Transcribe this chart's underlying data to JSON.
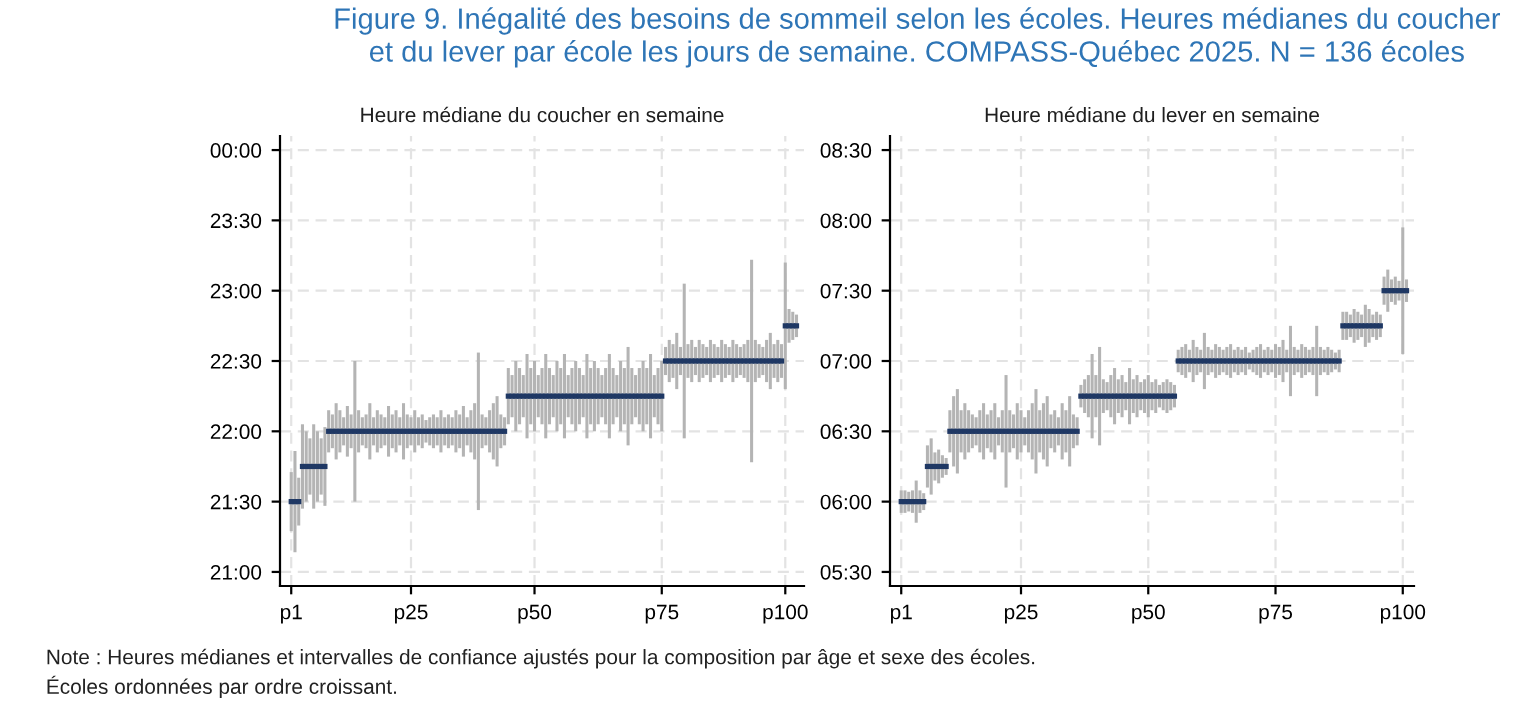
{
  "chart_data": [
    {
      "type": "scatter",
      "title": "Heure médiane du coucher en semaine",
      "annotations": [
        "Figure 9. Inégalité des besoins de sommeil selon les écoles. Heures médianes du coucher\net du lever par école les jours de semaine. COMPASS-Québec 2025. N = 136 écoles",
        "Note : Heures médianes et intervalles de confiance ajustés pour la composition par âge et sexe des écoles.\nÉcoles ordonnées par ordre croissant."
      ],
      "categories": [
        "p1",
        null,
        null,
        null,
        null,
        null,
        null,
        null,
        null,
        null,
        null,
        null,
        null,
        null,
        null,
        null,
        null,
        null,
        null,
        null,
        null,
        null,
        null,
        null,
        null,
        null,
        null,
        null,
        null,
        null,
        null,
        null,
        "p25",
        null,
        null,
        null,
        null,
        null,
        null,
        null,
        null,
        null,
        null,
        null,
        null,
        null,
        null,
        null,
        null,
        null,
        null,
        null,
        null,
        null,
        null,
        null,
        null,
        null,
        null,
        null,
        null,
        null,
        null,
        null,
        null,
        "p50",
        null,
        null,
        null,
        null,
        null,
        null,
        null,
        null,
        null,
        null,
        null,
        null,
        null,
        null,
        null,
        null,
        null,
        null,
        null,
        null,
        null,
        null,
        null,
        null,
        null,
        null,
        null,
        null,
        null,
        null,
        null,
        null,
        null,
        "p75",
        null,
        null,
        null,
        null,
        null,
        null,
        null,
        null,
        null,
        null,
        null,
        null,
        null,
        null,
        null,
        null,
        null,
        null,
        null,
        null,
        null,
        null,
        null,
        null,
        null,
        null,
        null,
        null,
        null,
        null,
        null,
        null,
        "p100",
        null,
        null,
        null
      ],
      "ylim": [
        20.9,
        24.1
      ],
      "yticks": [
        {
          "value": 21,
          "label": "21:00"
        },
        {
          "value": 21.5,
          "label": "21:30"
        },
        {
          "value": 22,
          "label": "22:00"
        },
        {
          "value": 22.5,
          "label": "22:30"
        },
        {
          "value": 23,
          "label": "23:00"
        },
        {
          "value": 23.5,
          "label": "23:30"
        },
        {
          "value": 24,
          "label": "00:00"
        }
      ],
      "grid": true,
      "series": [
        {
          "color": "#1f3864",
          "values": [
            21.5,
            21.5,
            21.5,
            21.75,
            21.75,
            21.75,
            21.75,
            21.75,
            21.75,
            21.75,
            22,
            22,
            22,
            22,
            22,
            22,
            22,
            22,
            22,
            22,
            22,
            22,
            22,
            22,
            22,
            22,
            22,
            22,
            22,
            22,
            22,
            22,
            22,
            22,
            22,
            22,
            22,
            22,
            22,
            22,
            22,
            22,
            22,
            22,
            22,
            22,
            22,
            22,
            22,
            22,
            22,
            22,
            22,
            22,
            22,
            22,
            22,
            22,
            22.25,
            22.25,
            22.25,
            22.25,
            22.25,
            22.25,
            22.25,
            22.25,
            22.25,
            22.25,
            22.25,
            22.25,
            22.25,
            22.25,
            22.25,
            22.25,
            22.25,
            22.25,
            22.25,
            22.25,
            22.25,
            22.25,
            22.25,
            22.25,
            22.25,
            22.25,
            22.25,
            22.25,
            22.25,
            22.25,
            22.25,
            22.25,
            22.25,
            22.25,
            22.25,
            22.25,
            22.25,
            22.25,
            22.25,
            22.25,
            22.25,
            22.25,
            22.5,
            22.5,
            22.5,
            22.5,
            22.5,
            22.5,
            22.5,
            22.5,
            22.5,
            22.5,
            22.5,
            22.5,
            22.5,
            22.5,
            22.5,
            22.5,
            22.5,
            22.5,
            22.5,
            22.5,
            22.5,
            22.5,
            22.5,
            22.5,
            22.5,
            22.5,
            22.5,
            22.5,
            22.5,
            22.5,
            22.5,
            22.5,
            22.75,
            22.75,
            22.75,
            22.75
          ],
          "errors": [
            0.21,
            0.36,
            0.17,
            0.3,
            0.25,
            0.2,
            0.3,
            0.25,
            0.2,
            0.28,
            0.15,
            0.12,
            0.2,
            0.15,
            0.1,
            0.18,
            0.12,
            0.5,
            0.15,
            0.1,
            0.12,
            0.2,
            0.1,
            0.15,
            0.12,
            0.1,
            0.18,
            0.12,
            0.15,
            0.1,
            0.2,
            0.12,
            0.1,
            0.15,
            0.1,
            0.12,
            0.08,
            0.1,
            0.12,
            0.1,
            0.15,
            0.1,
            0.12,
            0.1,
            0.15,
            0.12,
            0.18,
            0.1,
            0.15,
            0.2,
            0.56,
            0.12,
            0.1,
            0.15,
            0.2,
            0.25,
            0.12,
            0.1,
            0.2,
            0.15,
            0.25,
            0.2,
            0.15,
            0.3,
            0.2,
            0.25,
            0.15,
            0.2,
            0.3,
            0.2,
            0.15,
            0.25,
            0.2,
            0.3,
            0.15,
            0.2,
            0.25,
            0.2,
            0.15,
            0.3,
            0.2,
            0.25,
            0.2,
            0.15,
            0.2,
            0.3,
            0.2,
            0.15,
            0.25,
            0.2,
            0.35,
            0.2,
            0.15,
            0.2,
            0.25,
            0.2,
            0.3,
            0.15,
            0.2,
            0.25,
            0.1,
            0.15,
            0.12,
            0.2,
            0.1,
            0.55,
            0.12,
            0.15,
            0.1,
            0.15,
            0.12,
            0.1,
            0.15,
            0.12,
            0.1,
            0.15,
            0.12,
            0.1,
            0.15,
            0.12,
            0.1,
            0.12,
            0.15,
            0.72,
            0.15,
            0.12,
            0.1,
            0.15,
            0.2,
            0.12,
            0.15,
            0.12,
            0.45,
            0.12,
            0.1,
            0.08
          ]
        }
      ]
    },
    {
      "type": "scatter",
      "title": "Heure médiane du lever en semaine",
      "categories": [
        "p1",
        null,
        null,
        null,
        null,
        null,
        null,
        null,
        null,
        null,
        null,
        null,
        null,
        null,
        null,
        null,
        null,
        null,
        null,
        null,
        null,
        null,
        null,
        null,
        null,
        null,
        null,
        null,
        null,
        null,
        null,
        null,
        "p25",
        null,
        null,
        null,
        null,
        null,
        null,
        null,
        null,
        null,
        null,
        null,
        null,
        null,
        null,
        null,
        null,
        null,
        null,
        null,
        null,
        null,
        null,
        null,
        null,
        null,
        null,
        null,
        null,
        null,
        null,
        null,
        null,
        null,
        "p50",
        null,
        null,
        null,
        null,
        null,
        null,
        null,
        null,
        null,
        null,
        null,
        null,
        null,
        null,
        null,
        null,
        null,
        null,
        null,
        null,
        null,
        null,
        null,
        null,
        null,
        null,
        null,
        null,
        null,
        null,
        null,
        null,
        null,
        "p75",
        null,
        null,
        null,
        null,
        null,
        null,
        null,
        null,
        null,
        null,
        null,
        null,
        null,
        null,
        null,
        null,
        null,
        null,
        null,
        null,
        null,
        null,
        null,
        null,
        null,
        null,
        null,
        null,
        null,
        null,
        null,
        null,
        null,
        "p100",
        null
      ],
      "ylim": [
        5.4,
        8.6
      ],
      "yticks": [
        {
          "value": 5.5,
          "label": "05:30"
        },
        {
          "value": 6,
          "label": "06:00"
        },
        {
          "value": 6.5,
          "label": "06:30"
        },
        {
          "value": 7,
          "label": "07:00"
        },
        {
          "value": 7.5,
          "label": "07:30"
        },
        {
          "value": 8,
          "label": "08:00"
        },
        {
          "value": 8.5,
          "label": "08:30"
        }
      ],
      "grid": true,
      "series": [
        {
          "color": "#1f3864",
          "values": [
            6,
            6,
            6,
            6,
            6,
            6,
            6,
            6.25,
            6.25,
            6.25,
            6.25,
            6.25,
            6.25,
            6.5,
            6.5,
            6.5,
            6.5,
            6.5,
            6.5,
            6.5,
            6.5,
            6.5,
            6.5,
            6.5,
            6.5,
            6.5,
            6.5,
            6.5,
            6.5,
            6.5,
            6.5,
            6.5,
            6.5,
            6.5,
            6.5,
            6.5,
            6.5,
            6.5,
            6.5,
            6.5,
            6.5,
            6.5,
            6.5,
            6.5,
            6.5,
            6.5,
            6.5,
            6.5,
            6.75,
            6.75,
            6.75,
            6.75,
            6.75,
            6.75,
            6.75,
            6.75,
            6.75,
            6.75,
            6.75,
            6.75,
            6.75,
            6.75,
            6.75,
            6.75,
            6.75,
            6.75,
            6.75,
            6.75,
            6.75,
            6.75,
            6.75,
            6.75,
            6.75,
            6.75,
            7,
            7,
            7,
            7,
            7,
            7,
            7,
            7,
            7,
            7,
            7,
            7,
            7,
            7,
            7,
            7,
            7,
            7,
            7,
            7,
            7,
            7,
            7,
            7,
            7,
            7,
            7,
            7,
            7,
            7,
            7,
            7,
            7,
            7,
            7,
            7,
            7,
            7,
            7,
            7,
            7,
            7,
            7,
            7,
            7.25,
            7.25,
            7.25,
            7.25,
            7.25,
            7.25,
            7.25,
            7.25,
            7.25,
            7.25,
            7.25,
            7.5,
            7.5,
            7.5,
            7.5,
            7.5,
            7.5,
            7.5
          ],
          "errors": [
            0.08,
            0.08,
            0.07,
            0.08,
            0.15,
            0.08,
            0.06,
            0.15,
            0.2,
            0.1,
            0.12,
            0.08,
            0.06,
            0.15,
            0.25,
            0.3,
            0.15,
            0.2,
            0.15,
            0.12,
            0.1,
            0.15,
            0.2,
            0.12,
            0.15,
            0.2,
            0.1,
            0.15,
            0.4,
            0.15,
            0.12,
            0.2,
            0.15,
            0.1,
            0.15,
            0.2,
            0.3,
            0.15,
            0.2,
            0.25,
            0.12,
            0.15,
            0.1,
            0.2,
            0.15,
            0.25,
            0.12,
            0.1,
            0.08,
            0.12,
            0.15,
            0.3,
            0.15,
            0.35,
            0.12,
            0.1,
            0.15,
            0.2,
            0.12,
            0.15,
            0.1,
            0.2,
            0.12,
            0.15,
            0.1,
            0.12,
            0.15,
            0.1,
            0.12,
            0.08,
            0.1,
            0.12,
            0.1,
            0.08,
            0.08,
            0.1,
            0.12,
            0.08,
            0.15,
            0.1,
            0.08,
            0.2,
            0.1,
            0.08,
            0.12,
            0.1,
            0.08,
            0.1,
            0.12,
            0.08,
            0.1,
            0.08,
            0.1,
            0.06,
            0.08,
            0.1,
            0.12,
            0.08,
            0.1,
            0.08,
            0.12,
            0.1,
            0.15,
            0.08,
            0.25,
            0.1,
            0.08,
            0.12,
            0.1,
            0.08,
            0.1,
            0.25,
            0.1,
            0.08,
            0.1,
            0.08,
            0.06,
            0.08,
            0.1,
            0.1,
            0.08,
            0.12,
            0.1,
            0.08,
            0.15,
            0.12,
            0.08,
            0.1,
            0.08,
            0.1,
            0.15,
            0.08,
            0.1,
            0.07,
            0.45,
            0.08
          ]
        }
      ]
    }
  ]
}
